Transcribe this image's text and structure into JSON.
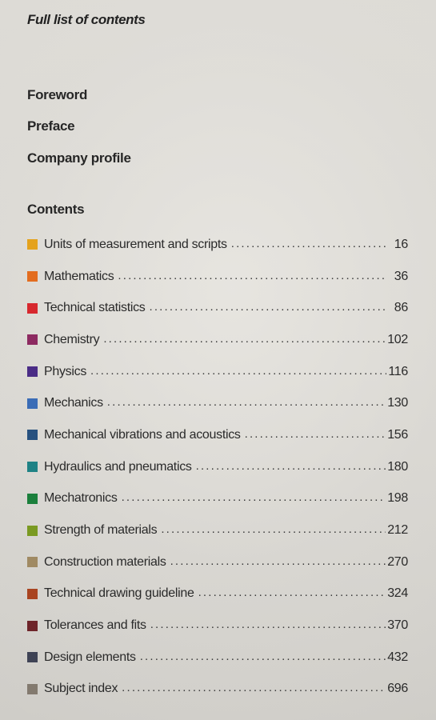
{
  "heading": "Full list of contents",
  "front_matter": [
    "Foreword",
    "Preface",
    "Company profile"
  ],
  "contents_label": "Contents",
  "toc": [
    {
      "title": "Units of measurement and scripts",
      "page": "16",
      "color": "#e4a21d"
    },
    {
      "title": "Mathematics",
      "page": "36",
      "color": "#e36d1f"
    },
    {
      "title": "Technical statistics",
      "page": "86",
      "color": "#d7282e"
    },
    {
      "title": "Chemistry",
      "page": "102",
      "color": "#8d2a61"
    },
    {
      "title": "Physics",
      "page": "116",
      "color": "#4a2c86"
    },
    {
      "title": "Mechanics",
      "page": "130",
      "color": "#3a6cb6"
    },
    {
      "title": "Mechanical vibrations and acoustics",
      "page": "156",
      "color": "#27517f"
    },
    {
      "title": "Hydraulics and pneumatics",
      "page": "180",
      "color": "#1f8285"
    },
    {
      "title": "Mechatronics",
      "page": "198",
      "color": "#1b7f3c"
    },
    {
      "title": "Strength of materials",
      "page": "212",
      "color": "#7a9a22"
    },
    {
      "title": "Construction materials",
      "page": "270",
      "color": "#a08a63"
    },
    {
      "title": "Technical drawing guideline",
      "page": "324",
      "color": "#a94420"
    },
    {
      "title": "Tolerances and fits",
      "page": "370",
      "color": "#6e2429"
    },
    {
      "title": "Design elements",
      "page": "432",
      "color": "#3f4355"
    },
    {
      "title": "Subject index",
      "page": "696",
      "color": "#837a6f"
    }
  ]
}
